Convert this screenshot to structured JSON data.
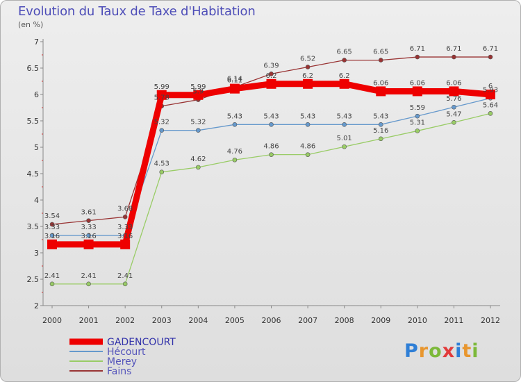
{
  "header": {
    "title": "Evolution du Taux de Taxe d'Habitation",
    "subtitle": "(en %)"
  },
  "brand": {
    "letters": [
      "P",
      "r",
      "o",
      "x",
      "i",
      "t",
      "i"
    ],
    "colors": [
      "#2f7fd6",
      "#e8962e",
      "#7cb93a",
      "#e23a3a",
      "#2f7fd6",
      "#e8962e",
      "#7cb93a"
    ]
  },
  "chart_data": {
    "type": "line",
    "title": "Evolution du Taux de Taxe d'Habitation",
    "ylabel": "(en %)",
    "xlabel": "",
    "ylim": [
      2,
      7
    ],
    "yticks": [
      "2",
      "2.5",
      "3",
      "3.5",
      "4",
      "4.5",
      "5",
      "5.5",
      "6",
      "6.5",
      "7"
    ],
    "categories": [
      "2000",
      "2001",
      "2002",
      "2003",
      "2004",
      "2005",
      "2006",
      "2007",
      "2008",
      "2009",
      "2010",
      "2011",
      "2012"
    ],
    "grid": false,
    "legend_position": "bottom-left",
    "series": [
      {
        "name": "GADENCOURT",
        "color": "#ee0000",
        "values": [
          3.16,
          3.16,
          3.16,
          5.99,
          5.99,
          6.11,
          6.2,
          6.2,
          6.2,
          6.06,
          6.06,
          6.06,
          6.0
        ],
        "labels": [
          "3.16",
          "3.16",
          "3.16",
          "5.99",
          "5.99",
          "6.11",
          "6.2",
          "6.2",
          "6.2",
          "6.06",
          "6.06",
          "6.06",
          "6"
        ]
      },
      {
        "name": "Hécourt",
        "color": "#6699cc",
        "values": [
          3.33,
          3.33,
          3.33,
          5.32,
          5.32,
          5.43,
          5.43,
          5.43,
          5.43,
          5.43,
          5.59,
          5.76,
          5.93
        ],
        "labels": [
          "3.33",
          "3.33",
          "3.33",
          "5.32",
          "5.32",
          "5.43",
          "5.43",
          "5.43",
          "5.43",
          "5.43",
          "5.59",
          "5.76",
          "5.93"
        ]
      },
      {
        "name": "Merey",
        "color": "#99cc66",
        "values": [
          2.41,
          2.41,
          2.41,
          4.53,
          4.62,
          4.76,
          4.86,
          4.86,
          5.01,
          5.16,
          5.31,
          5.47,
          5.64
        ],
        "labels": [
          "2.41",
          "2.41",
          "2.41",
          "4.53",
          "4.62",
          "4.76",
          "4.86",
          "4.86",
          "5.01",
          "5.16",
          "5.31",
          "5.47",
          "5.64"
        ]
      },
      {
        "name": "Fains",
        "color": "#993333",
        "values": [
          3.54,
          3.61,
          3.68,
          5.78,
          5.9,
          6.14,
          6.39,
          6.52,
          6.65,
          6.65,
          6.71,
          6.71,
          6.71
        ],
        "labels": [
          "3.54",
          "3.61",
          "3.68",
          "5.78",
          "5.9",
          "6.14",
          "6.39",
          "6.52",
          "6.65",
          "6.65",
          "6.71",
          "6.71",
          "6.71"
        ]
      }
    ]
  }
}
